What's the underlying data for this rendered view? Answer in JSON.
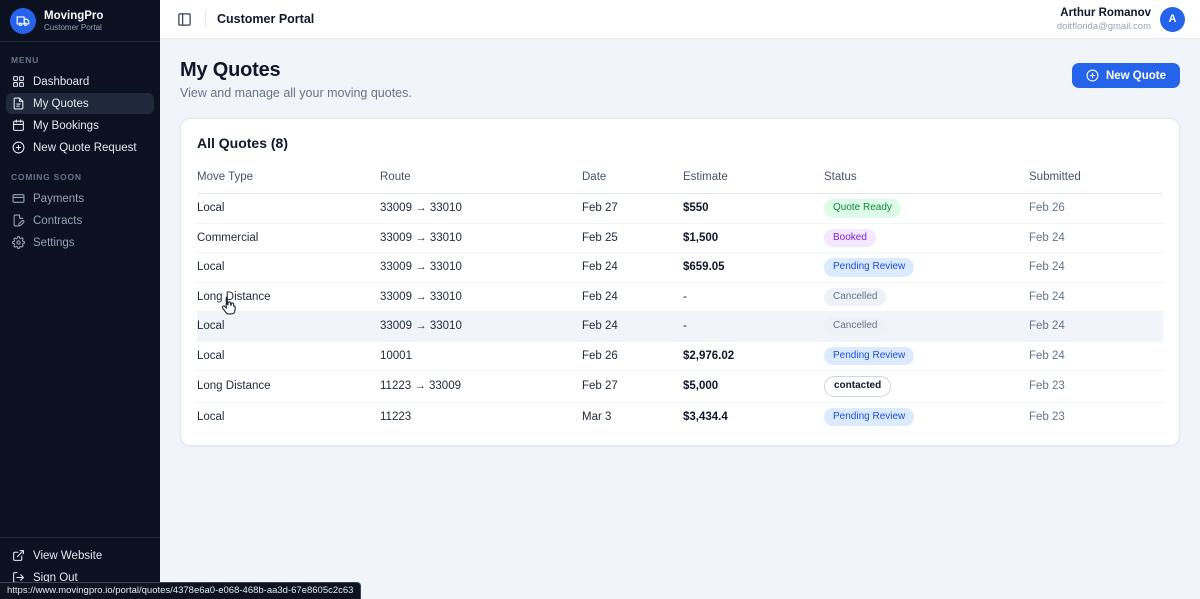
{
  "app": {
    "name": "MovingPro",
    "tagline": "Customer Portal"
  },
  "topbar": {
    "title": "Customer Portal",
    "user_name": "Arthur Romanov",
    "user_email": "doitflorida@gmail.com",
    "avatar_initial": "A"
  },
  "sidebar": {
    "menu_label": "Menu",
    "menu_items": [
      {
        "label": "Dashboard",
        "icon": "dashboard-grid-icon",
        "active": false
      },
      {
        "label": "My Quotes",
        "icon": "file-text-icon",
        "active": true
      },
      {
        "label": "My Bookings",
        "icon": "calendar-icon",
        "active": false
      },
      {
        "label": "New Quote Request",
        "icon": "plus-circle-icon",
        "active": false
      }
    ],
    "coming_soon_label": "Coming Soon",
    "coming_soon_items": [
      {
        "label": "Payments",
        "icon": "credit-card-icon"
      },
      {
        "label": "Contracts",
        "icon": "contract-icon"
      },
      {
        "label": "Settings",
        "icon": "gear-icon"
      }
    ],
    "footer_items": [
      {
        "label": "View Website",
        "icon": "external-link-icon"
      },
      {
        "label": "Sign Out",
        "icon": "logout-icon"
      }
    ]
  },
  "page": {
    "title": "My Quotes",
    "subtitle": "View and manage all your moving quotes.",
    "new_quote_button": "New Quote"
  },
  "quotes_card": {
    "title": "All Quotes (8)",
    "columns": [
      "Move Type",
      "Route",
      "Date",
      "Estimate",
      "Status",
      "Submitted"
    ],
    "rows": [
      {
        "move_type": "Local",
        "route": "33009 → 33010",
        "date": "Feb 27",
        "estimate": "$550",
        "status": "Quote Ready",
        "status_variant": "success",
        "submitted": "Feb 26",
        "hovered": false
      },
      {
        "move_type": "Commercial",
        "route": "33009 → 33010",
        "date": "Feb 25",
        "estimate": "$1,500",
        "status": "Booked",
        "status_variant": "purple",
        "submitted": "Feb 24",
        "hovered": false
      },
      {
        "move_type": "Local",
        "route": "33009 → 33010",
        "date": "Feb 24",
        "estimate": "$659.05",
        "status": "Pending Review",
        "status_variant": "info",
        "submitted": "Feb 24",
        "hovered": false
      },
      {
        "move_type": "Long Distance",
        "route": "33009 → 33010",
        "date": "Feb 24",
        "estimate": "-",
        "status": "Cancelled",
        "status_variant": "muted",
        "submitted": "Feb 24",
        "hovered": false
      },
      {
        "move_type": "Local",
        "route": "33009 → 33010",
        "date": "Feb 24",
        "estimate": "-",
        "status": "Cancelled",
        "status_variant": "muted",
        "submitted": "Feb 24",
        "hovered": true
      },
      {
        "move_type": "Local",
        "route": "10001",
        "date": "Feb 26",
        "estimate": "$2,976.02",
        "status": "Pending Review",
        "status_variant": "info",
        "submitted": "Feb 24",
        "hovered": false
      },
      {
        "move_type": "Long Distance",
        "route": "11223 → 33009",
        "date": "Feb 27",
        "estimate": "$5,000",
        "status": "contacted",
        "status_variant": "outline",
        "submitted": "Feb 23",
        "hovered": false
      },
      {
        "move_type": "Local",
        "route": "11223",
        "date": "Mar 3",
        "estimate": "$3,434.4",
        "status": "Pending Review",
        "status_variant": "info",
        "submitted": "Feb 23",
        "hovered": false
      }
    ]
  },
  "status_bar": {
    "url": "https://www.movingpro.io/portal/quotes/4378e6a0-e068-468b-aa3d-67e8605c2c63"
  },
  "colors": {
    "accent": "#2563eb",
    "sidebar-bg": "#0b1120",
    "sidebar-active": "#1e293b",
    "content-bg": "#f1f5f9",
    "badge-success-bg": "#dcfce7",
    "badge-success-text": "#15803d",
    "badge-purple-bg": "#f3e8ff",
    "badge-purple-text": "#7e22ce",
    "badge-info-bg": "#dbeafe",
    "badge-info-text": "#1d4ed8",
    "badge-muted-bg": "#eef2f6",
    "badge-muted-text": "#64748b"
  }
}
